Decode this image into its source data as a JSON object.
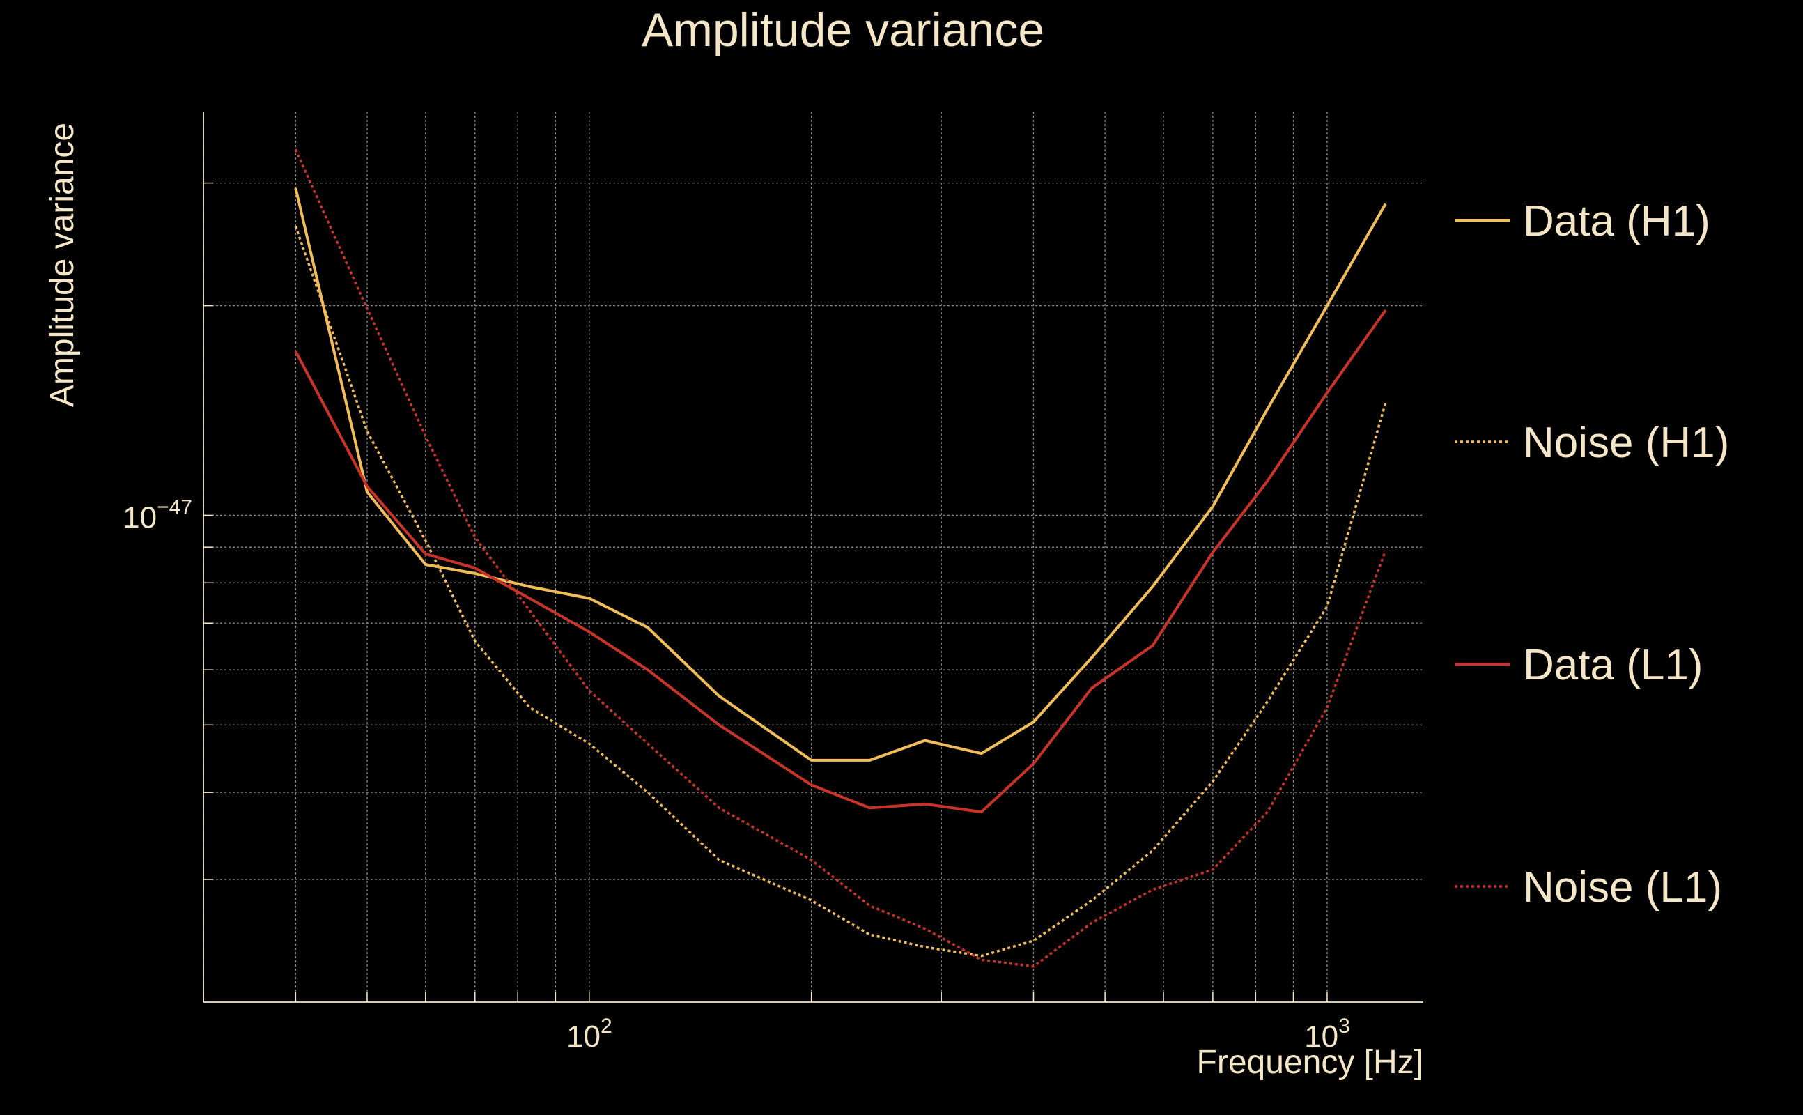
{
  "chart_data": {
    "type": "line",
    "title": "Amplitude variance",
    "xlabel": "Frequency [Hz]",
    "ylabel": "Amplitude variance",
    "xscale": "log",
    "yscale": "log",
    "xlim": [
      30,
      1350
    ],
    "ylim": [
      2e-48,
      3.8e-47
    ],
    "grid": true,
    "legend_position": "right",
    "x_tick_labels": [
      {
        "value": 100,
        "base": "10",
        "exp": "2"
      },
      {
        "value": 1000,
        "base": "10",
        "exp": "3"
      }
    ],
    "y_tick_labels": [
      {
        "value": 1e-47,
        "base": "10",
        "exp": "−47"
      }
    ],
    "x_minor_ticks": [
      30,
      40,
      50,
      60,
      70,
      80,
      90,
      200,
      300,
      400,
      500,
      600,
      700,
      800,
      900
    ],
    "y_minor_ticks": [
      3e-48,
      4e-48,
      5e-48,
      6e-48,
      7e-48,
      8e-48,
      9e-48,
      2e-47,
      3e-47
    ],
    "x": [
      40,
      50,
      60,
      70,
      83,
      100,
      120,
      150,
      200,
      240,
      285,
      340,
      400,
      480,
      580,
      700,
      830,
      1000,
      1200
    ],
    "series": [
      {
        "name": "Data (H1)",
        "color": "#f0bd5a",
        "dash": "solid",
        "values": [
          2.95e-47,
          1.08e-47,
          8.5e-48,
          8.25e-48,
          7.9e-48,
          7.6e-48,
          6.9e-48,
          5.5e-48,
          4.45e-48,
          4.45e-48,
          4.75e-48,
          4.55e-48,
          5.05e-48,
          6.25e-48,
          7.9e-48,
          1.03e-47,
          1.42e-47,
          2e-47,
          2.8e-47
        ]
      },
      {
        "name": "Noise (H1)",
        "color": "#f0bd5a",
        "dash": "dotted",
        "values": [
          2.6e-47,
          1.32e-47,
          9.2e-48,
          6.6e-48,
          5.3e-48,
          4.7e-48,
          4e-48,
          3.2e-48,
          2.8e-48,
          2.5e-48,
          2.4e-48,
          2.33e-48,
          2.45e-48,
          2.8e-48,
          3.3e-48,
          4.15e-48,
          5.4e-48,
          7.4e-48,
          1.45e-47
        ]
      },
      {
        "name": "Data (L1)",
        "color": "#c8342a",
        "dash": "solid",
        "values": [
          1.72e-47,
          1.1e-47,
          8.8e-48,
          8.4e-48,
          7.6e-48,
          6.8e-48,
          6e-48,
          5e-48,
          4.1e-48,
          3.8e-48,
          3.85e-48,
          3.75e-48,
          4.4e-48,
          5.65e-48,
          6.5e-48,
          8.85e-48,
          1.12e-47,
          1.5e-47,
          1.97e-47
        ]
      },
      {
        "name": "Noise (L1)",
        "color": "#c8342a",
        "dash": "dotted",
        "values": [
          3.35e-47,
          1.98e-47,
          1.3e-47,
          9.3e-48,
          7.3e-48,
          5.6e-48,
          4.7e-48,
          3.8e-48,
          3.2e-48,
          2.75e-48,
          2.55e-48,
          2.3e-48,
          2.25e-48,
          2.6e-48,
          2.9e-48,
          3.1e-48,
          3.75e-48,
          5.3e-48,
          8.9e-48
        ]
      }
    ]
  },
  "colors": {
    "background": "#000000",
    "text": "#f5e6c8",
    "grid": "#8a8a8a"
  }
}
